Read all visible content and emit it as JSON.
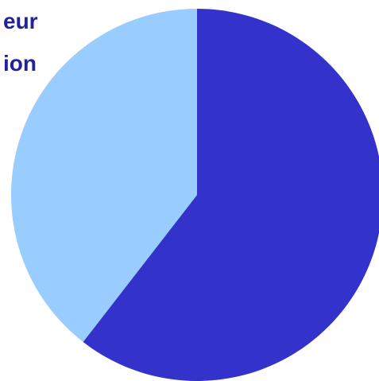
{
  "chart_data": {
    "type": "pie",
    "title": "",
    "slices": [
      {
        "value": 60.5,
        "color": "#3333cc"
      },
      {
        "value": 39.5,
        "color": "#99ccff"
      }
    ],
    "start_angle_deg": 0,
    "direction": "clockwise",
    "annotations": [
      "eur",
      "ion"
    ]
  }
}
